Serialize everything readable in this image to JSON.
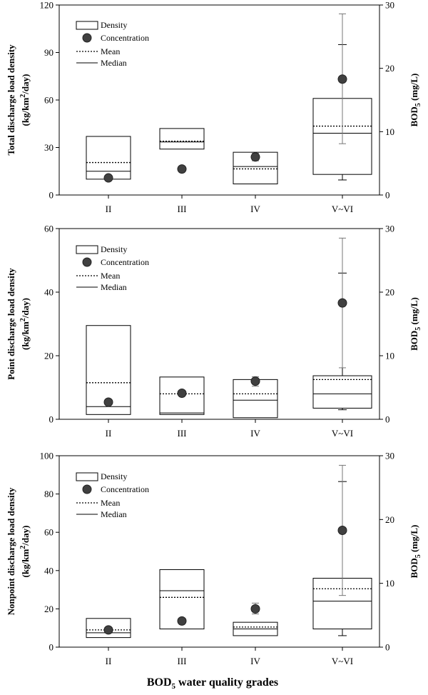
{
  "x_axis_title": "BOD5 water quality grades",
  "chart_data": [
    {
      "type": "box",
      "ylabel_left": [
        "Total discharge load density",
        "(kg/km2/day)"
      ],
      "ylabel_right": "BOD5 (mg/L)",
      "ylim_left": [
        0,
        120
      ],
      "yticks_left": [
        0,
        30,
        60,
        90,
        120
      ],
      "ylim_right": [
        0,
        30
      ],
      "yticks_right": [
        0,
        10,
        20,
        30
      ],
      "categories": [
        "II",
        "III",
        "IV",
        "V~VI"
      ],
      "legend": [
        "Density",
        "Concentration",
        "Mean",
        "Median"
      ],
      "density": [
        {
          "q1": 10,
          "median": 15,
          "mean": 20.5,
          "q3": 37
        },
        {
          "q1": 29,
          "median": 33.5,
          "mean": 34,
          "q3": 42
        },
        {
          "q1": 7,
          "median": 18,
          "mean": 16.5,
          "q3": 27
        },
        {
          "q1": 13,
          "median": 39,
          "mean": 43.5,
          "q3": 61,
          "whisker_low": 9.5,
          "whisker_high": 95
        }
      ],
      "concentration": [
        {
          "value": 2.7
        },
        {
          "value": 4.1
        },
        {
          "value": 6,
          "err_low": 5.4,
          "err_high": 6.6
        },
        {
          "value": 18.3,
          "err_low": 8.1,
          "err_high": 28.6
        }
      ]
    },
    {
      "type": "box",
      "ylabel_left": [
        "Point discharge load density",
        "(kg/km2/day)"
      ],
      "ylabel_right": "BOD5 (mg/L)",
      "ylim_left": [
        0,
        60
      ],
      "yticks_left": [
        0,
        20,
        40,
        60
      ],
      "ylim_right": [
        0,
        30
      ],
      "yticks_right": [
        0,
        10,
        20,
        30
      ],
      "categories": [
        "II",
        "III",
        "IV",
        "V~VI"
      ],
      "legend": [
        "Density",
        "Concentration",
        "Mean",
        "Median"
      ],
      "density": [
        {
          "q1": 1.5,
          "median": 4,
          "mean": 11.5,
          "q3": 29.5
        },
        {
          "q1": 1.5,
          "median": 2,
          "mean": 8,
          "q3": 13.3
        },
        {
          "q1": 0.5,
          "median": 6,
          "mean": 8,
          "q3": 12.5
        },
        {
          "q1": 3.5,
          "median": 8,
          "mean": 12.5,
          "q3": 13.7,
          "whisker_low": 3,
          "whisker_high": 46
        }
      ],
      "concentration": [
        {
          "value": 2.7
        },
        {
          "value": 4.1
        },
        {
          "value": 6,
          "err_low": 5.2,
          "err_high": 6.7
        },
        {
          "value": 18.3,
          "err_low": 8.1,
          "err_high": 28.5
        }
      ]
    },
    {
      "type": "box",
      "ylabel_left": [
        "Nonpoint discharge load density",
        "(kg/km2/day)"
      ],
      "ylabel_right": "BOD5 (mg/L)",
      "ylim_left": [
        0,
        100
      ],
      "yticks_left": [
        0,
        20,
        40,
        60,
        80,
        100
      ],
      "ylim_right": [
        0,
        30
      ],
      "yticks_right": [
        0,
        10,
        20,
        30
      ],
      "categories": [
        "II",
        "III",
        "IV",
        "V~VI"
      ],
      "legend": [
        "Density",
        "Concentration",
        "Mean",
        "Median"
      ],
      "density": [
        {
          "q1": 5,
          "median": 7.5,
          "mean": 9,
          "q3": 15
        },
        {
          "q1": 9.5,
          "median": 29.5,
          "mean": 26,
          "q3": 40.5
        },
        {
          "q1": 6,
          "median": 9.5,
          "mean": 10.5,
          "q3": 13
        },
        {
          "q1": 9.5,
          "median": 24,
          "mean": 30.5,
          "q3": 36,
          "whisker_low": 6,
          "whisker_high": 86.5
        }
      ],
      "concentration": [
        {
          "value": 2.7
        },
        {
          "value": 4.1
        },
        {
          "value": 6,
          "err_low": 5.2,
          "err_high": 6.9
        },
        {
          "value": 18.3,
          "err_low": 8.1,
          "err_high": 28.5
        }
      ]
    }
  ]
}
